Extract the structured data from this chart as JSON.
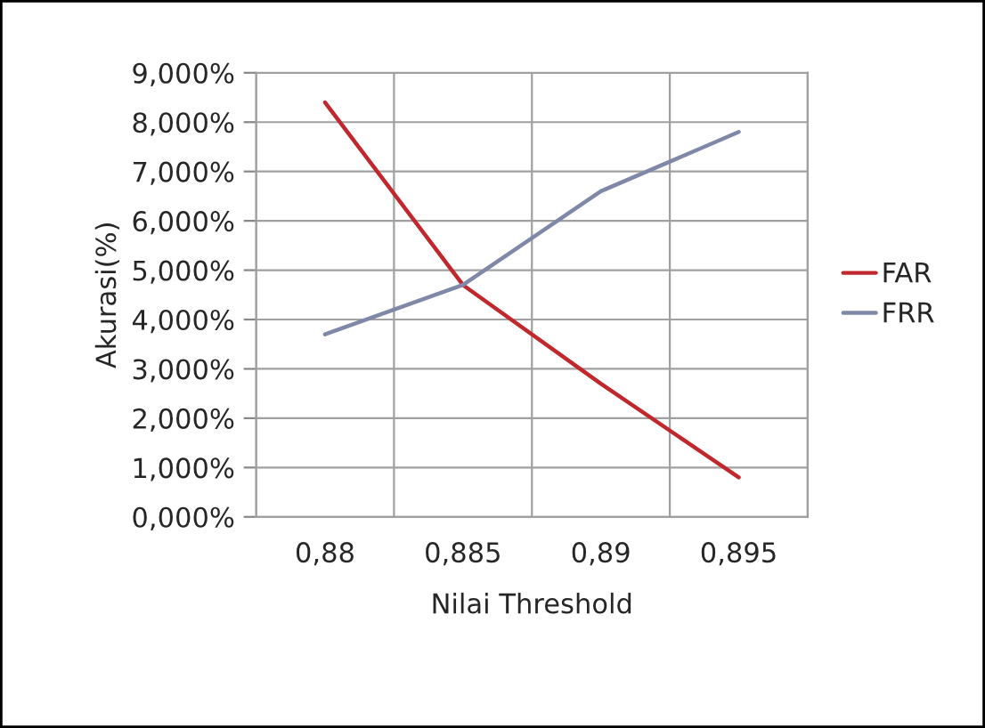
{
  "chart_data": {
    "type": "line",
    "xlabel": "Nilai Threshold",
    "ylabel": "Akurasi(%)",
    "categories": [
      "0,88",
      "0,885",
      "0,89",
      "0,895"
    ],
    "series": [
      {
        "name": "FAR",
        "color": "#c0282d",
        "values": [
          8.4,
          4.7,
          2.7,
          0.8
        ]
      },
      {
        "name": "FRR",
        "color": "#8088a8",
        "values": [
          3.7,
          4.7,
          6.6,
          7.8
        ]
      }
    ],
    "ylim": [
      0,
      9
    ],
    "yticks": [
      {
        "value": 0,
        "label": "0,000%"
      },
      {
        "value": 1,
        "label": "1,000%"
      },
      {
        "value": 2,
        "label": "2,000%"
      },
      {
        "value": 3,
        "label": "3,000%"
      },
      {
        "value": 4,
        "label": "4,000%"
      },
      {
        "value": 5,
        "label": "5,000%"
      },
      {
        "value": 6,
        "label": "6,000%"
      },
      {
        "value": 7,
        "label": "7,000%"
      },
      {
        "value": 8,
        "label": "8,000%"
      },
      {
        "value": 9,
        "label": "9,000%"
      }
    ],
    "grid": true,
    "legend": "right",
    "marker": "none",
    "line_style": "solid"
  }
}
